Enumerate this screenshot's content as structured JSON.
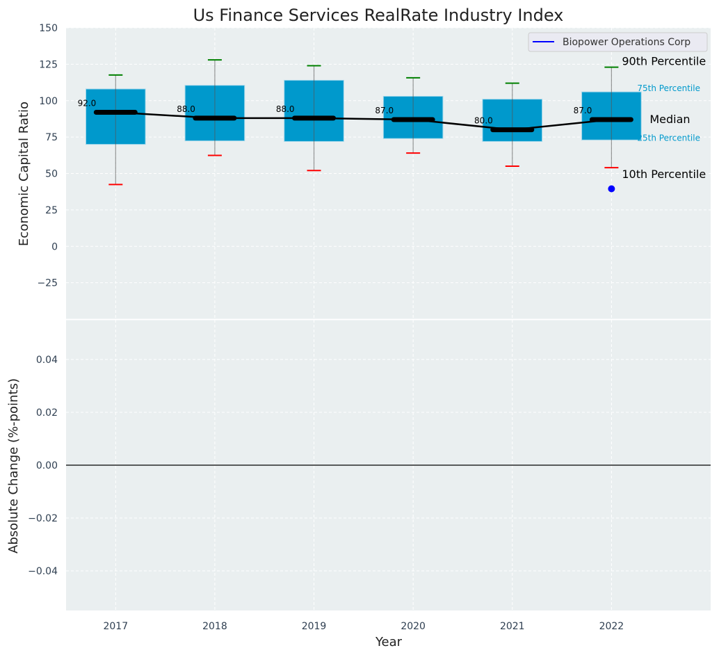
{
  "chart_data": [
    {
      "type": "box",
      "title": "Us Finance Services RealRate Industry Index",
      "ylabel": "Economic Capital Ratio",
      "ylim": [
        -50,
        150
      ],
      "yticks": [
        -25,
        0,
        25,
        50,
        75,
        100,
        125,
        150
      ],
      "ytick_labels": [
        "−25",
        "0",
        "25",
        "50",
        "75",
        "100",
        "125",
        "150"
      ],
      "xlim": [
        2016.5,
        2023
      ],
      "categories": [
        "2017",
        "2018",
        "2019",
        "2020",
        "2021",
        "2022"
      ],
      "p10": [
        42.4,
        62.4,
        52,
        64,
        55,
        54
      ],
      "p25": [
        70,
        72.4,
        72,
        74,
        72,
        73
      ],
      "median": [
        92,
        88,
        88,
        87,
        80,
        87
      ],
      "p75": [
        108,
        110.5,
        114,
        103,
        101,
        106
      ],
      "p90": [
        117.6,
        128,
        124,
        115.7,
        112,
        123
      ],
      "median_labels": [
        "92.0",
        "88.0",
        "88.0",
        "87.0",
        "80.0",
        "87.0"
      ],
      "company": {
        "name": "Biopower Operations Corp",
        "x": [
          2022
        ],
        "y": [
          39.5
        ],
        "color": "#0000ff"
      },
      "legend": {
        "position": "top-right",
        "entries": [
          "Biopower Operations Corp"
        ]
      },
      "annotations": {
        "p90": "90th Percentile",
        "p75": "75th Percentile",
        "median": "Median",
        "p25": "25th Percentile",
        "p10": "10th Percentile"
      },
      "colors": {
        "box": "#0099cc",
        "p90": "#008000",
        "p10": "#ff0000",
        "median": "#000000",
        "bg": "#eaeff0"
      },
      "grid": true
    },
    {
      "type": "line",
      "ylabel": "Absolute Change (%-points)",
      "xlabel": "Year",
      "ylim": [
        -0.055,
        0.055
      ],
      "yticks": [
        -0.04,
        -0.02,
        0,
        0.02,
        0.04
      ],
      "ytick_labels": [
        "−0.04",
        "−0.02",
        "0.00",
        "0.02",
        "0.04"
      ],
      "xticks": [
        2017,
        2018,
        2019,
        2020,
        2021,
        2022
      ],
      "xtick_labels": [
        "2017",
        "2018",
        "2019",
        "2020",
        "2021",
        "2022"
      ],
      "hline": 0,
      "grid": true
    }
  ]
}
